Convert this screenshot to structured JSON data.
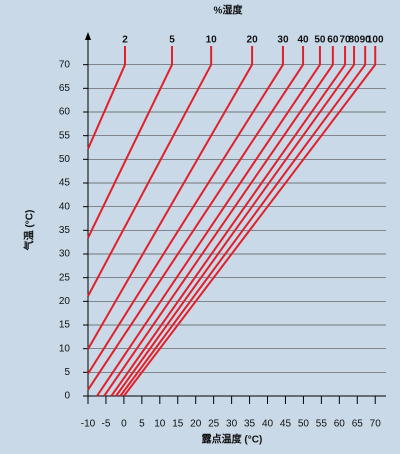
{
  "chart_data": {
    "type": "line",
    "title": "%湿度",
    "x_label": "露点温度 (°C)",
    "y_label": "气温 (°C)",
    "xlim": [
      -10,
      73
    ],
    "ylim": [
      0,
      75
    ],
    "xticks": [
      -10,
      -5,
      0,
      5,
      10,
      15,
      20,
      25,
      30,
      35,
      40,
      45,
      50,
      55,
      60,
      65,
      70
    ],
    "yticks": [
      0,
      5,
      10,
      15,
      20,
      25,
      30,
      35,
      40,
      45,
      50,
      55,
      60,
      65,
      70
    ],
    "grid": true,
    "color": "#e0202a",
    "series": [
      {
        "name": "2",
        "x": [
          -10,
          0.3
        ],
        "values": [
          52.2,
          70
        ]
      },
      {
        "name": "5",
        "x": [
          -10,
          13.4
        ],
        "values": [
          33.4,
          70
        ]
      },
      {
        "name": "10",
        "x": [
          -10,
          24.3
        ],
        "values": [
          21.1,
          70
        ]
      },
      {
        "name": "20",
        "x": [
          -10,
          35.7
        ],
        "values": [
          9.9,
          70
        ]
      },
      {
        "name": "30",
        "x": [
          -10,
          44.3
        ],
        "values": [
          4.7,
          70
        ]
      },
      {
        "name": "40",
        "x": [
          -10,
          49.9
        ],
        "values": [
          1.3,
          70
        ]
      },
      {
        "name": "50",
        "x": [
          -7.5,
          54.6
        ],
        "values": [
          0,
          70
        ]
      },
      {
        "name": "60",
        "x": [
          -5.5,
          58.2
        ],
        "values": [
          0,
          70
        ]
      },
      {
        "name": "70",
        "x": [
          -3.5,
          61.6
        ],
        "values": [
          0,
          70
        ]
      },
      {
        "name": "80",
        "x": [
          -2.2,
          64.1
        ],
        "values": [
          0,
          70
        ]
      },
      {
        "name": "90",
        "x": [
          -1,
          67.2
        ],
        "values": [
          0,
          70
        ]
      },
      {
        "name": "100",
        "x": [
          0,
          70
        ],
        "values": [
          0,
          70
        ]
      }
    ]
  }
}
